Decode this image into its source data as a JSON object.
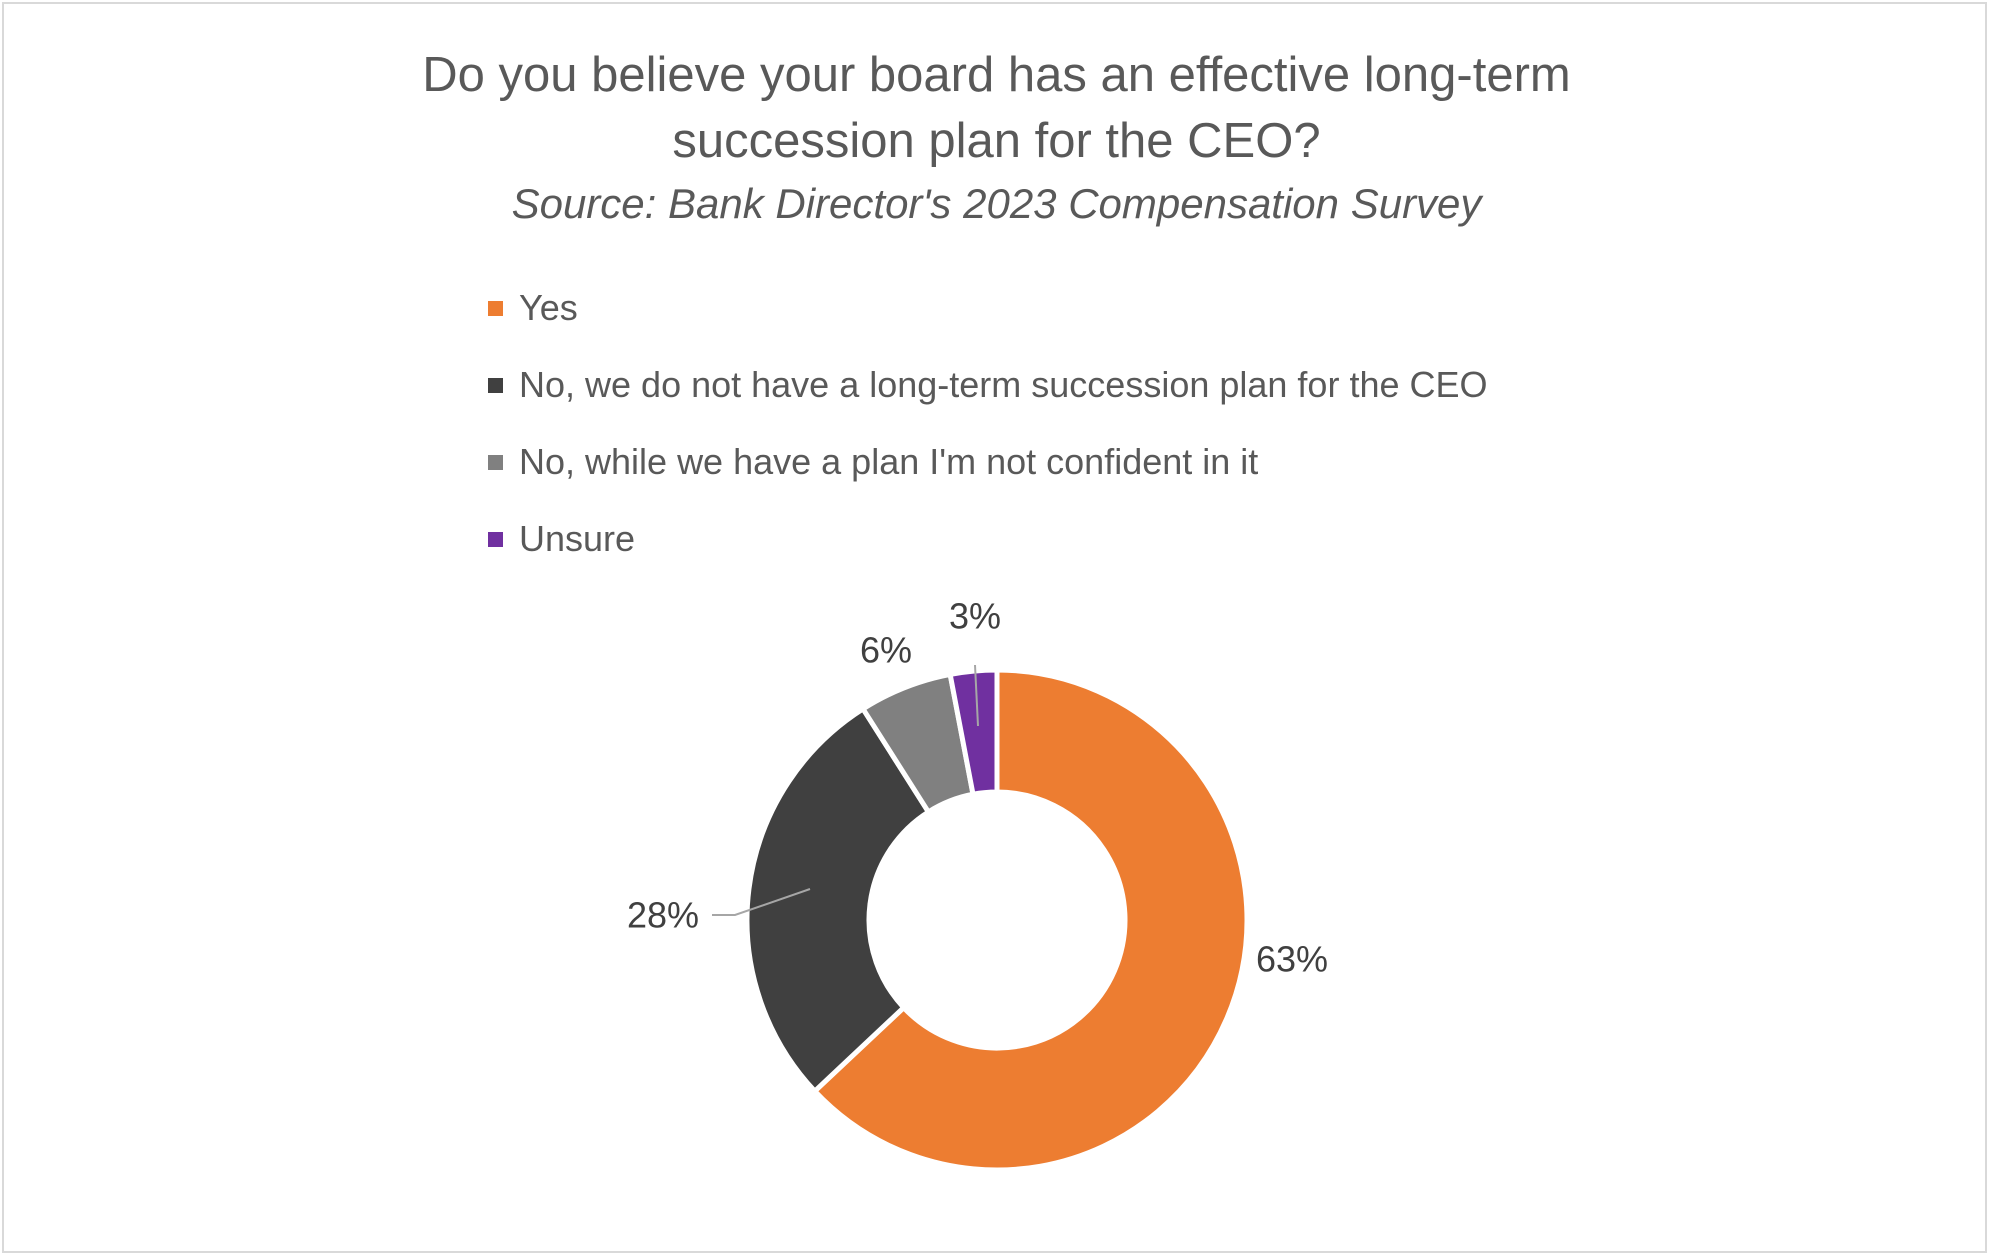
{
  "chart_data": {
    "type": "pie",
    "style": "donut",
    "title_line1": "Do you believe your board has an effective long-term",
    "title_line2": "succession plan for the CEO?",
    "subtitle": "Source: Bank Director's 2023 Compensation Survey",
    "legend_position": "top",
    "series": [
      {
        "name": "Yes",
        "value": 63,
        "label": "63%",
        "color": "#ED7D31"
      },
      {
        "name": "No, we do not have a long-term succession plan for the CEO",
        "value": 28,
        "label": "28%",
        "color": "#404040"
      },
      {
        "name": "No, while we have a plan I'm not confident in it",
        "value": 6,
        "label": "6%",
        "color": "#808080"
      },
      {
        "name": "Unsure",
        "value": 3,
        "label": "3%",
        "color": "#7030A0"
      }
    ]
  }
}
